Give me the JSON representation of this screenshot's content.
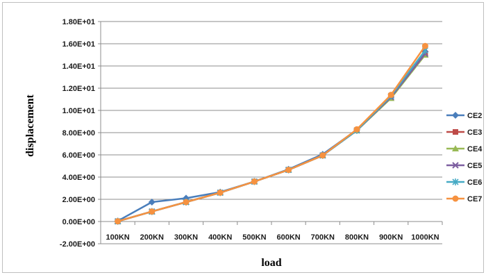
{
  "chart_data": {
    "type": "line",
    "title": "",
    "xlabel": "load",
    "ylabel": "displacement",
    "categories": [
      "100KN",
      "200KN",
      "300KN",
      "400KN",
      "500KN",
      "600KN",
      "700KN",
      "800KN",
      "900KN",
      "1000KN"
    ],
    "ylim": [
      -2,
      18
    ],
    "yticks": [
      -2,
      0,
      2,
      4,
      6,
      8,
      10,
      12,
      14,
      16,
      18
    ],
    "ytick_labels": [
      "-2.00E+00",
      "0.00E+00",
      "2.00E+00",
      "4.00E+00",
      "6.00E+00",
      "8.00E+00",
      "1.00E+01",
      "1.20E+01",
      "1.40E+01",
      "1.60E+01",
      "1.80E+01"
    ],
    "grid": true,
    "legend": "right",
    "series": [
      {
        "name": "CE2",
        "color": "#4a7ebb",
        "marker": "diamond",
        "values": [
          0.05,
          1.75,
          2.1,
          2.65,
          3.6,
          4.7,
          6.05,
          8.25,
          11.2,
          15.3
        ]
      },
      {
        "name": "CE3",
        "color": "#be4b48",
        "marker": "square",
        "values": [
          0.02,
          0.9,
          1.75,
          2.6,
          3.6,
          4.65,
          5.95,
          8.2,
          11.2,
          15.1
        ]
      },
      {
        "name": "CE4",
        "color": "#98b954",
        "marker": "triangle",
        "values": [
          0.02,
          0.9,
          1.75,
          2.6,
          3.6,
          4.65,
          5.95,
          8.2,
          11.1,
          15.0
        ]
      },
      {
        "name": "CE5",
        "color": "#7d5fa0",
        "marker": "x",
        "values": [
          0.02,
          0.9,
          1.75,
          2.6,
          3.6,
          4.65,
          5.95,
          8.2,
          11.2,
          15.1
        ]
      },
      {
        "name": "CE6",
        "color": "#46aac5",
        "marker": "star",
        "values": [
          0.02,
          0.9,
          1.75,
          2.6,
          3.6,
          4.65,
          5.95,
          8.2,
          11.3,
          15.4
        ]
      },
      {
        "name": "CE7",
        "color": "#f69240",
        "marker": "circle",
        "values": [
          0.02,
          0.9,
          1.75,
          2.6,
          3.6,
          4.65,
          5.95,
          8.3,
          11.4,
          15.8
        ]
      }
    ]
  }
}
